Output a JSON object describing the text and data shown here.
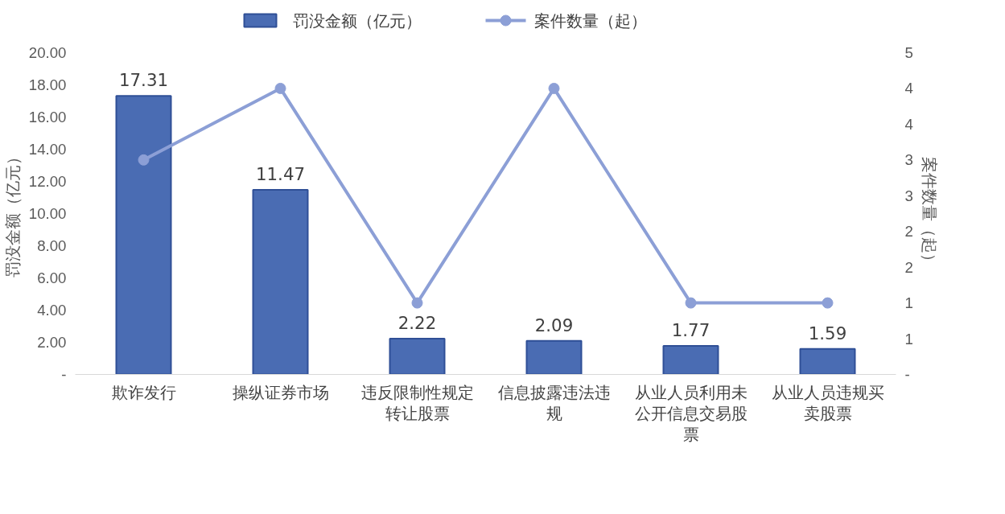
{
  "chart_data": {
    "type": "bar",
    "categories": [
      "欺诈发行",
      "操纵证券市场",
      "违反限制性规定转让股票",
      "信息披露违法违规",
      "从业人员利用未公开信息交易股票",
      "从业人员违规买卖股票"
    ],
    "ylabel": "罚没金额（亿元）",
    "y2label": "案件数量（起）",
    "series": [
      {
        "name": "罚没金额（亿元）",
        "color": "#4a6cb3",
        "values": [
          17.31,
          11.47,
          2.22,
          2.09,
          1.77,
          1.59
        ],
        "value_labels": [
          "17.31",
          "11.47",
          "2.22",
          "2.09",
          "1.77",
          "1.59"
        ]
      },
      {
        "name": "案件数量（起）",
        "type": "line",
        "axis": "y2",
        "color": "#8c9fd6",
        "marker": "circle",
        "values": [
          3,
          4,
          1,
          4,
          1,
          1
        ]
      }
    ],
    "legend": "top",
    "grid": false,
    "ylim": [
      0,
      20
    ],
    "yticks": [
      {
        "value": 0,
        "label": "-"
      },
      {
        "value": 2,
        "label": "2.00"
      },
      {
        "value": 4,
        "label": "4.00"
      },
      {
        "value": 6,
        "label": "6.00"
      },
      {
        "value": 8,
        "label": "8.00"
      },
      {
        "value": 10,
        "label": "10.00"
      },
      {
        "value": 12,
        "label": "12.00"
      },
      {
        "value": 14,
        "label": "14.00"
      },
      {
        "value": 16,
        "label": "16.00"
      },
      {
        "value": 18,
        "label": "18.00"
      },
      {
        "value": 20,
        "label": "20.00"
      }
    ],
    "y2lim": [
      0,
      4.5
    ],
    "y2ticks": [
      {
        "value": 0,
        "label": "-"
      },
      {
        "value": 0.5,
        "label": "1"
      },
      1,
      {
        "value": 1.5,
        "label": "2"
      },
      2,
      {
        "value": 2.5,
        "label": "3"
      },
      3,
      {
        "value": 3.5,
        "label": "4"
      },
      4,
      {
        "value": 4.5,
        "label": "5"
      }
    ]
  }
}
